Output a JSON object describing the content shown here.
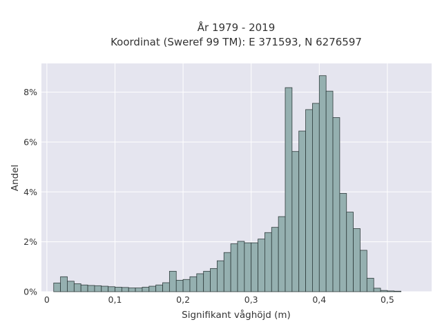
{
  "chart_data": {
    "type": "bar",
    "title_lines": [
      "År 1979 - 2019",
      "Koordinat (Sweref 99 TM): E 371593, N 6276597"
    ],
    "xlabel": "Signifikant våghöjd (m)",
    "ylabel": "Andel",
    "xlim": [
      -0.008,
      0.565
    ],
    "ylim": [
      0,
      0.0915
    ],
    "x_ticks": [
      0,
      0.1,
      0.2,
      0.3,
      0.4,
      0.5
    ],
    "x_tick_labels": [
      "0",
      "0,1",
      "0,2",
      "0,3",
      "0,4",
      "0,5"
    ],
    "y_ticks": [
      0,
      0.02,
      0.04,
      0.06,
      0.08
    ],
    "y_tick_labels": [
      "0%",
      "2%",
      "4%",
      "6%",
      "8%"
    ],
    "bin_start": 0.01,
    "bin_width": 0.01,
    "values": [
      0.0035,
      0.006,
      0.0042,
      0.0032,
      0.0027,
      0.0025,
      0.0024,
      0.0022,
      0.002,
      0.0018,
      0.0017,
      0.0015,
      0.0015,
      0.0018,
      0.0022,
      0.0027,
      0.0036,
      0.0082,
      0.0046,
      0.0049,
      0.006,
      0.0072,
      0.0082,
      0.0093,
      0.0124,
      0.0157,
      0.0192,
      0.0202,
      0.0196,
      0.0196,
      0.0211,
      0.0237,
      0.0258,
      0.0301,
      0.0818,
      0.0562,
      0.0644,
      0.073,
      0.0755,
      0.0866,
      0.0804,
      0.0698,
      0.0394,
      0.0319,
      0.0253,
      0.0166,
      0.0054,
      0.0014,
      0.0005,
      0.0003,
      0.0002
    ],
    "grid": true,
    "colors": {
      "plot_bg": "#e5e5ef",
      "bar_fill": "#95b0b0",
      "bar_stroke": "#2e3b3b",
      "grid": "#ffffff",
      "text": "#333333"
    }
  }
}
